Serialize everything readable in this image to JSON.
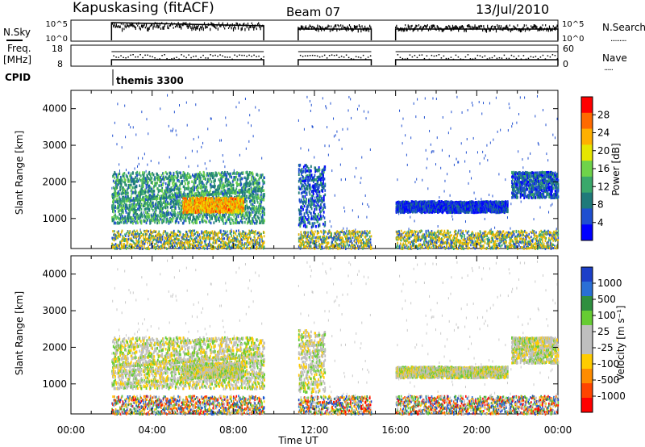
{
  "header": {
    "station": "Kapuskasing (fitACF)",
    "beam": "Beam 07",
    "date": "13/Jul/2010"
  },
  "left_labels": {
    "nsky": "N.Sky",
    "freq_line1": "Freq.",
    "freq_line2": "[MHz]",
    "cpid": "CPID"
  },
  "right_labels": {
    "nsearch": "N.Search",
    "nave": "Nave"
  },
  "mini_axes": {
    "nsky_top": "10^5",
    "nsky_bottom": "10^0",
    "freq_top": "18",
    "freq_bottom": "8",
    "nsearch_top": "10^5",
    "nsearch_bottom": "10^0",
    "nave_top": "60",
    "nave_bottom": "0"
  },
  "cpid_label": "themis 3300",
  "x_axis": {
    "label": "Time UT",
    "ticks": [
      "00:00",
      "04:00",
      "08:00",
      "12:00",
      "16:00",
      "20:00",
      "00:00"
    ]
  },
  "panels": [
    {
      "ylabel": "Slant Range [km]",
      "yticks": [
        "4000",
        "3000",
        "2000",
        "1000"
      ],
      "colorbar_label": "Power [dB]",
      "colorbar_ticks": [
        "28",
        "24",
        "20",
        "16",
        "12",
        "8",
        "4"
      ]
    },
    {
      "ylabel": "Slant Range [km]",
      "yticks": [
        "4000",
        "3000",
        "2000",
        "1000"
      ],
      "colorbar_label": "Velocity [m s⁻¹]",
      "colorbar_ticks": [
        "1000",
        "500",
        "100",
        "25",
        "-25",
        "-100",
        "-500",
        "-1000"
      ]
    }
  ],
  "colors": {
    "power_scale": [
      "#ff0000",
      "#ff6a00",
      "#ffb000",
      "#e6e600",
      "#6fd34a",
      "#3aa86b",
      "#1f7a7a",
      "#1f4fd0",
      "#0000ff"
    ],
    "velocity_scale": [
      "#1c3fc8",
      "#2a6fd6",
      "#2f8f3f",
      "#66cc33",
      "#bfbfbf",
      "#bfbfbf",
      "#ffcc00",
      "#ff8c00",
      "#ff4400",
      "#ff0000"
    ]
  },
  "chart_data": {
    "type": "heatmap",
    "x_range_hours": [
      0,
      24
    ],
    "slant_range_km": [
      180,
      4500
    ],
    "data_intervals_ut_hours": [
      [
        2.0,
        9.5
      ],
      [
        11.2,
        14.8
      ],
      [
        16.0,
        24.0
      ]
    ],
    "power_panel": {
      "colorbar_ticks_db": [
        28,
        24,
        20,
        16,
        12,
        8,
        4
      ],
      "scatter_regions": [
        {
          "t_start": 2.0,
          "t_end": 9.5,
          "range_km": [
            900,
            2300
          ],
          "level_db": 12
        },
        {
          "t_start": 5.5,
          "t_end": 8.5,
          "range_km": [
            1200,
            1600
          ],
          "level_db": 22
        },
        {
          "t_start": 11.2,
          "t_end": 12.5,
          "range_km": [
            800,
            2500
          ],
          "level_db": 8
        },
        {
          "t_start": 16.0,
          "t_end": 21.5,
          "range_km": [
            1200,
            1500
          ],
          "level_db": 6
        },
        {
          "t_start": 21.7,
          "t_end": 24.0,
          "range_km": [
            1600,
            2300
          ],
          "level_db": 8
        }
      ]
    },
    "velocity_panel": {
      "colorbar_ticks_ms": [
        1000,
        500,
        100,
        25,
        -25,
        -100,
        -500,
        -1000
      ]
    }
  }
}
